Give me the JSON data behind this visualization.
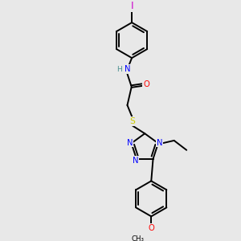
{
  "background_color": "#e8e8e8",
  "bond_color": "#000000",
  "atom_colors": {
    "N": "#0000ff",
    "O": "#ff0000",
    "S": "#cccc00",
    "I": "#cc00cc",
    "H": "#4a9090",
    "C": "#000000"
  },
  "figsize": [
    3.0,
    3.0
  ],
  "dpi": 100,
  "xlim": [
    0,
    10
  ],
  "ylim": [
    0,
    10
  ],
  "lw": 1.4,
  "fs": 7.2
}
